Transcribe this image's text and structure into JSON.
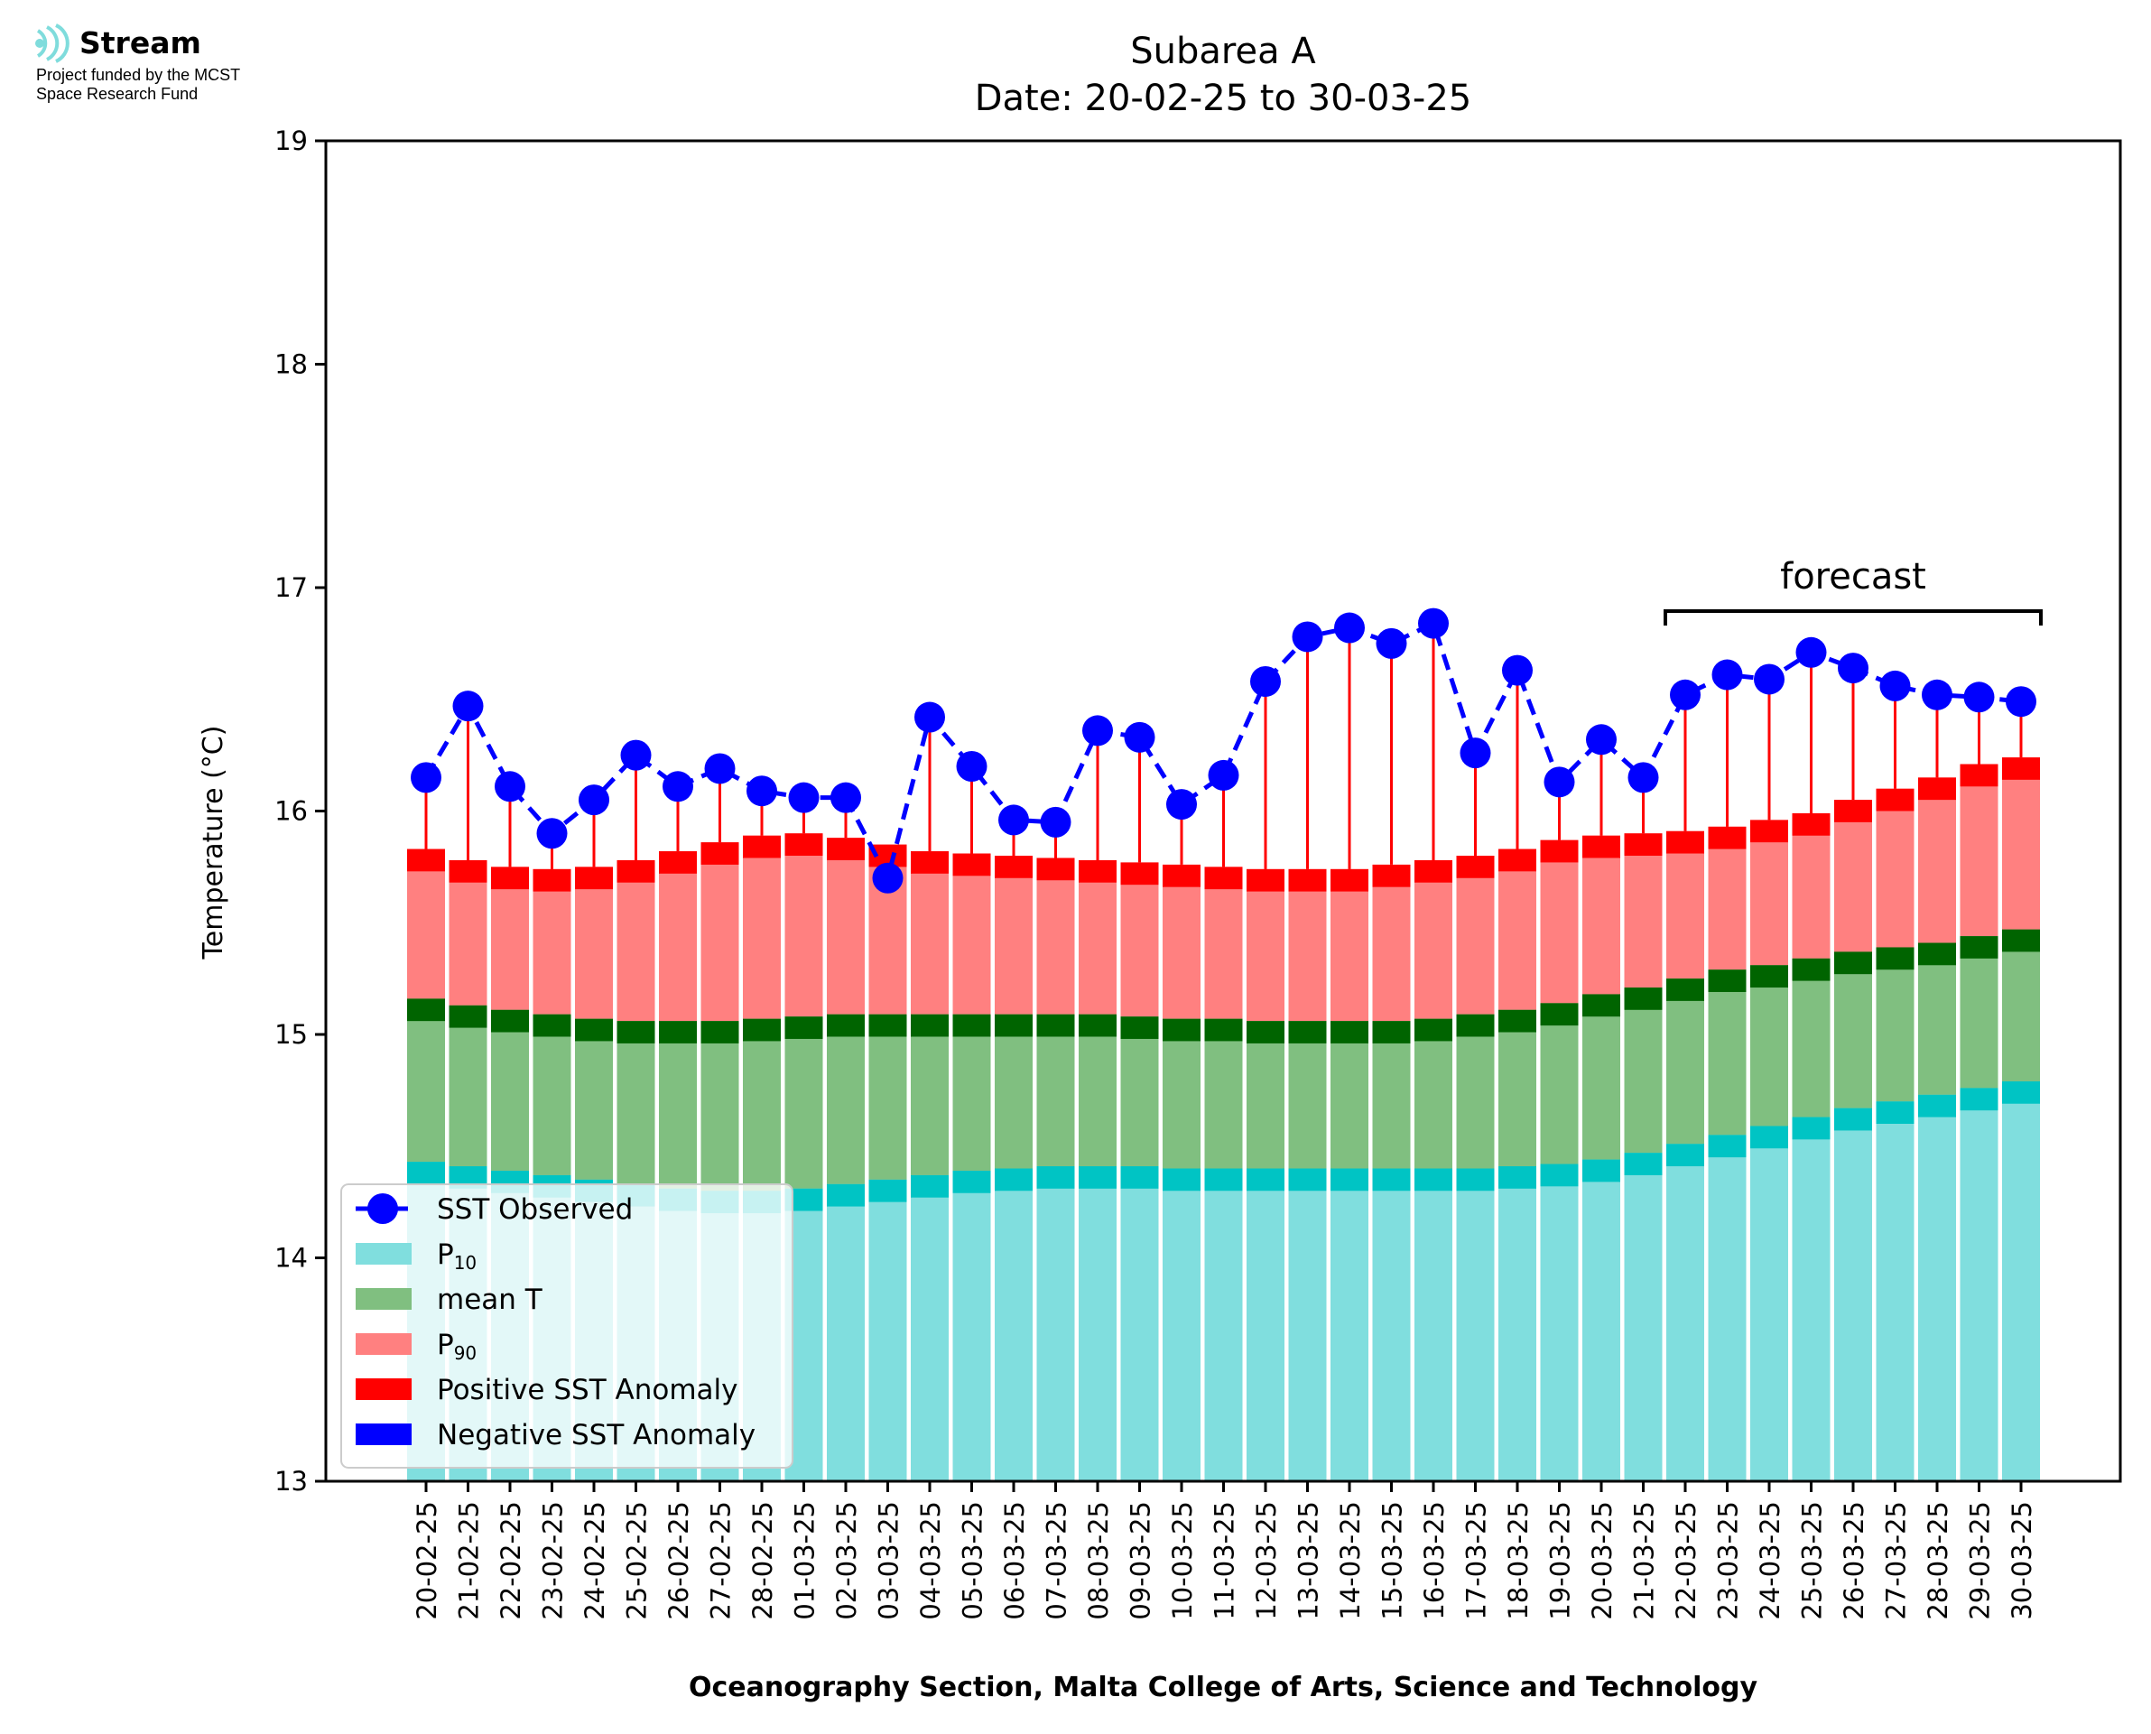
{
  "logo": {
    "name": "Stream",
    "line1": "Project funded by the MCST",
    "line2": "Space Research Fund",
    "color": "#7fdcdc"
  },
  "chart_data": {
    "type": "bar",
    "title": "Subarea A",
    "subtitle": "Date: 20-02-25 to 30-03-25",
    "xlabel": "Oceanography Section, Malta College of Arts, Science and Technology",
    "ylabel": "Temperature (°C)",
    "ylim": [
      13,
      19
    ],
    "yticks": [
      13,
      14,
      15,
      16,
      17,
      18,
      19
    ],
    "categories": [
      "20-02-25",
      "21-02-25",
      "22-02-25",
      "23-02-25",
      "24-02-25",
      "25-02-25",
      "26-02-25",
      "27-02-25",
      "28-02-25",
      "01-03-25",
      "02-03-25",
      "03-03-25",
      "04-03-25",
      "05-03-25",
      "06-03-25",
      "07-03-25",
      "08-03-25",
      "09-03-25",
      "10-03-25",
      "11-03-25",
      "12-03-25",
      "13-03-25",
      "14-03-25",
      "15-03-25",
      "16-03-25",
      "17-03-25",
      "18-03-25",
      "19-03-25",
      "20-03-25",
      "21-03-25",
      "22-03-25",
      "23-03-25",
      "24-03-25",
      "25-03-25",
      "26-03-25",
      "27-03-25",
      "28-03-25",
      "29-03-25",
      "30-03-25"
    ],
    "series": [
      {
        "name": "P10",
        "kind": "bar",
        "color": "#80dede",
        "band_color": "#00c4c4",
        "values": [
          14.43,
          14.41,
          14.39,
          14.37,
          14.35,
          14.33,
          14.31,
          14.3,
          14.3,
          14.31,
          14.33,
          14.35,
          14.37,
          14.39,
          14.4,
          14.41,
          14.41,
          14.41,
          14.4,
          14.4,
          14.4,
          14.4,
          14.4,
          14.4,
          14.4,
          14.4,
          14.41,
          14.42,
          14.44,
          14.47,
          14.51,
          14.55,
          14.59,
          14.63,
          14.67,
          14.7,
          14.73,
          14.76,
          14.79
        ]
      },
      {
        "name": "mean T",
        "kind": "bar",
        "color": "#80bf80",
        "band_color": "#006400",
        "values": [
          15.16,
          15.13,
          15.11,
          15.09,
          15.07,
          15.06,
          15.06,
          15.06,
          15.07,
          15.08,
          15.09,
          15.09,
          15.09,
          15.09,
          15.09,
          15.09,
          15.09,
          15.08,
          15.07,
          15.07,
          15.06,
          15.06,
          15.06,
          15.06,
          15.07,
          15.09,
          15.11,
          15.14,
          15.18,
          15.21,
          15.25,
          15.29,
          15.31,
          15.34,
          15.37,
          15.39,
          15.41,
          15.44,
          15.47
        ]
      },
      {
        "name": "P90",
        "kind": "bar",
        "color": "#ff8080",
        "band_color": "#ff0000",
        "values": [
          15.83,
          15.78,
          15.75,
          15.74,
          15.75,
          15.78,
          15.82,
          15.86,
          15.89,
          15.9,
          15.88,
          15.85,
          15.82,
          15.81,
          15.8,
          15.79,
          15.78,
          15.77,
          15.76,
          15.75,
          15.74,
          15.74,
          15.74,
          15.76,
          15.78,
          15.8,
          15.83,
          15.87,
          15.89,
          15.9,
          15.91,
          15.93,
          15.96,
          15.99,
          16.05,
          16.1,
          16.15,
          16.21,
          16.24
        ]
      },
      {
        "name": "SST Observed",
        "kind": "line",
        "color": "#0000ff",
        "values": [
          16.15,
          16.47,
          16.11,
          15.9,
          16.05,
          16.25,
          16.11,
          16.19,
          16.09,
          16.06,
          16.06,
          15.7,
          16.42,
          16.2,
          15.96,
          15.95,
          16.36,
          16.33,
          16.03,
          16.16,
          16.58,
          16.78,
          16.82,
          16.75,
          16.84,
          16.26,
          16.63,
          16.13,
          16.32,
          16.15,
          16.52,
          16.61,
          16.59,
          16.71,
          16.64,
          16.56,
          16.52,
          16.51,
          16.49
        ]
      }
    ],
    "anomaly": {
      "positive_color": "#ff0000",
      "negative_color": "#0000ff"
    },
    "forecast": {
      "label": "forecast",
      "from": "22-03-25",
      "to": "30-03-25"
    },
    "legend": {
      "position": "lower-left",
      "items": [
        {
          "label": "SST Observed",
          "type": "line-marker",
          "color": "#0000ff"
        },
        {
          "label": "P",
          "sub": "10",
          "type": "patch",
          "color": "#80dede"
        },
        {
          "label": "mean T",
          "type": "patch",
          "color": "#80bf80"
        },
        {
          "label": "P",
          "sub": "90",
          "type": "patch",
          "color": "#ff8080"
        },
        {
          "label": "Positive SST Anomaly",
          "type": "patch",
          "color": "#ff0000"
        },
        {
          "label": "Negative SST Anomaly",
          "type": "patch",
          "color": "#0000ff"
        }
      ]
    },
    "grid": false
  }
}
